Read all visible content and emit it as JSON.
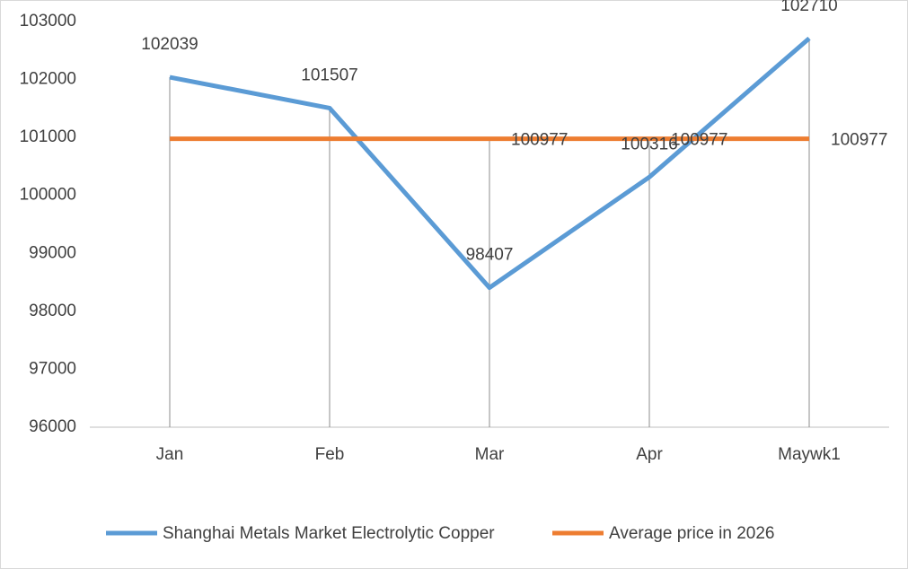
{
  "chart_data": {
    "type": "line",
    "categories": [
      "Jan",
      "Feb",
      "Mar",
      "Apr",
      "Maywk1"
    ],
    "series": [
      {
        "name": "Shanghai Metals Market Electrolytic Copper",
        "color": "#5b9bd5",
        "values": [
          102039,
          101507,
          98407,
          100316,
          102710
        ]
      },
      {
        "name": "Average price in 2026",
        "color": "#ed7d31",
        "values": [
          100977,
          100977,
          100977,
          100977,
          100977
        ],
        "value_labels": [
          null,
          null,
          "100977",
          "100977",
          "100977"
        ]
      }
    ],
    "ylim": [
      96000,
      103000
    ],
    "yticks": [
      96000,
      97000,
      98000,
      99000,
      100000,
      101000,
      102000,
      103000
    ],
    "drop_lines": true,
    "legend": "bottom"
  }
}
